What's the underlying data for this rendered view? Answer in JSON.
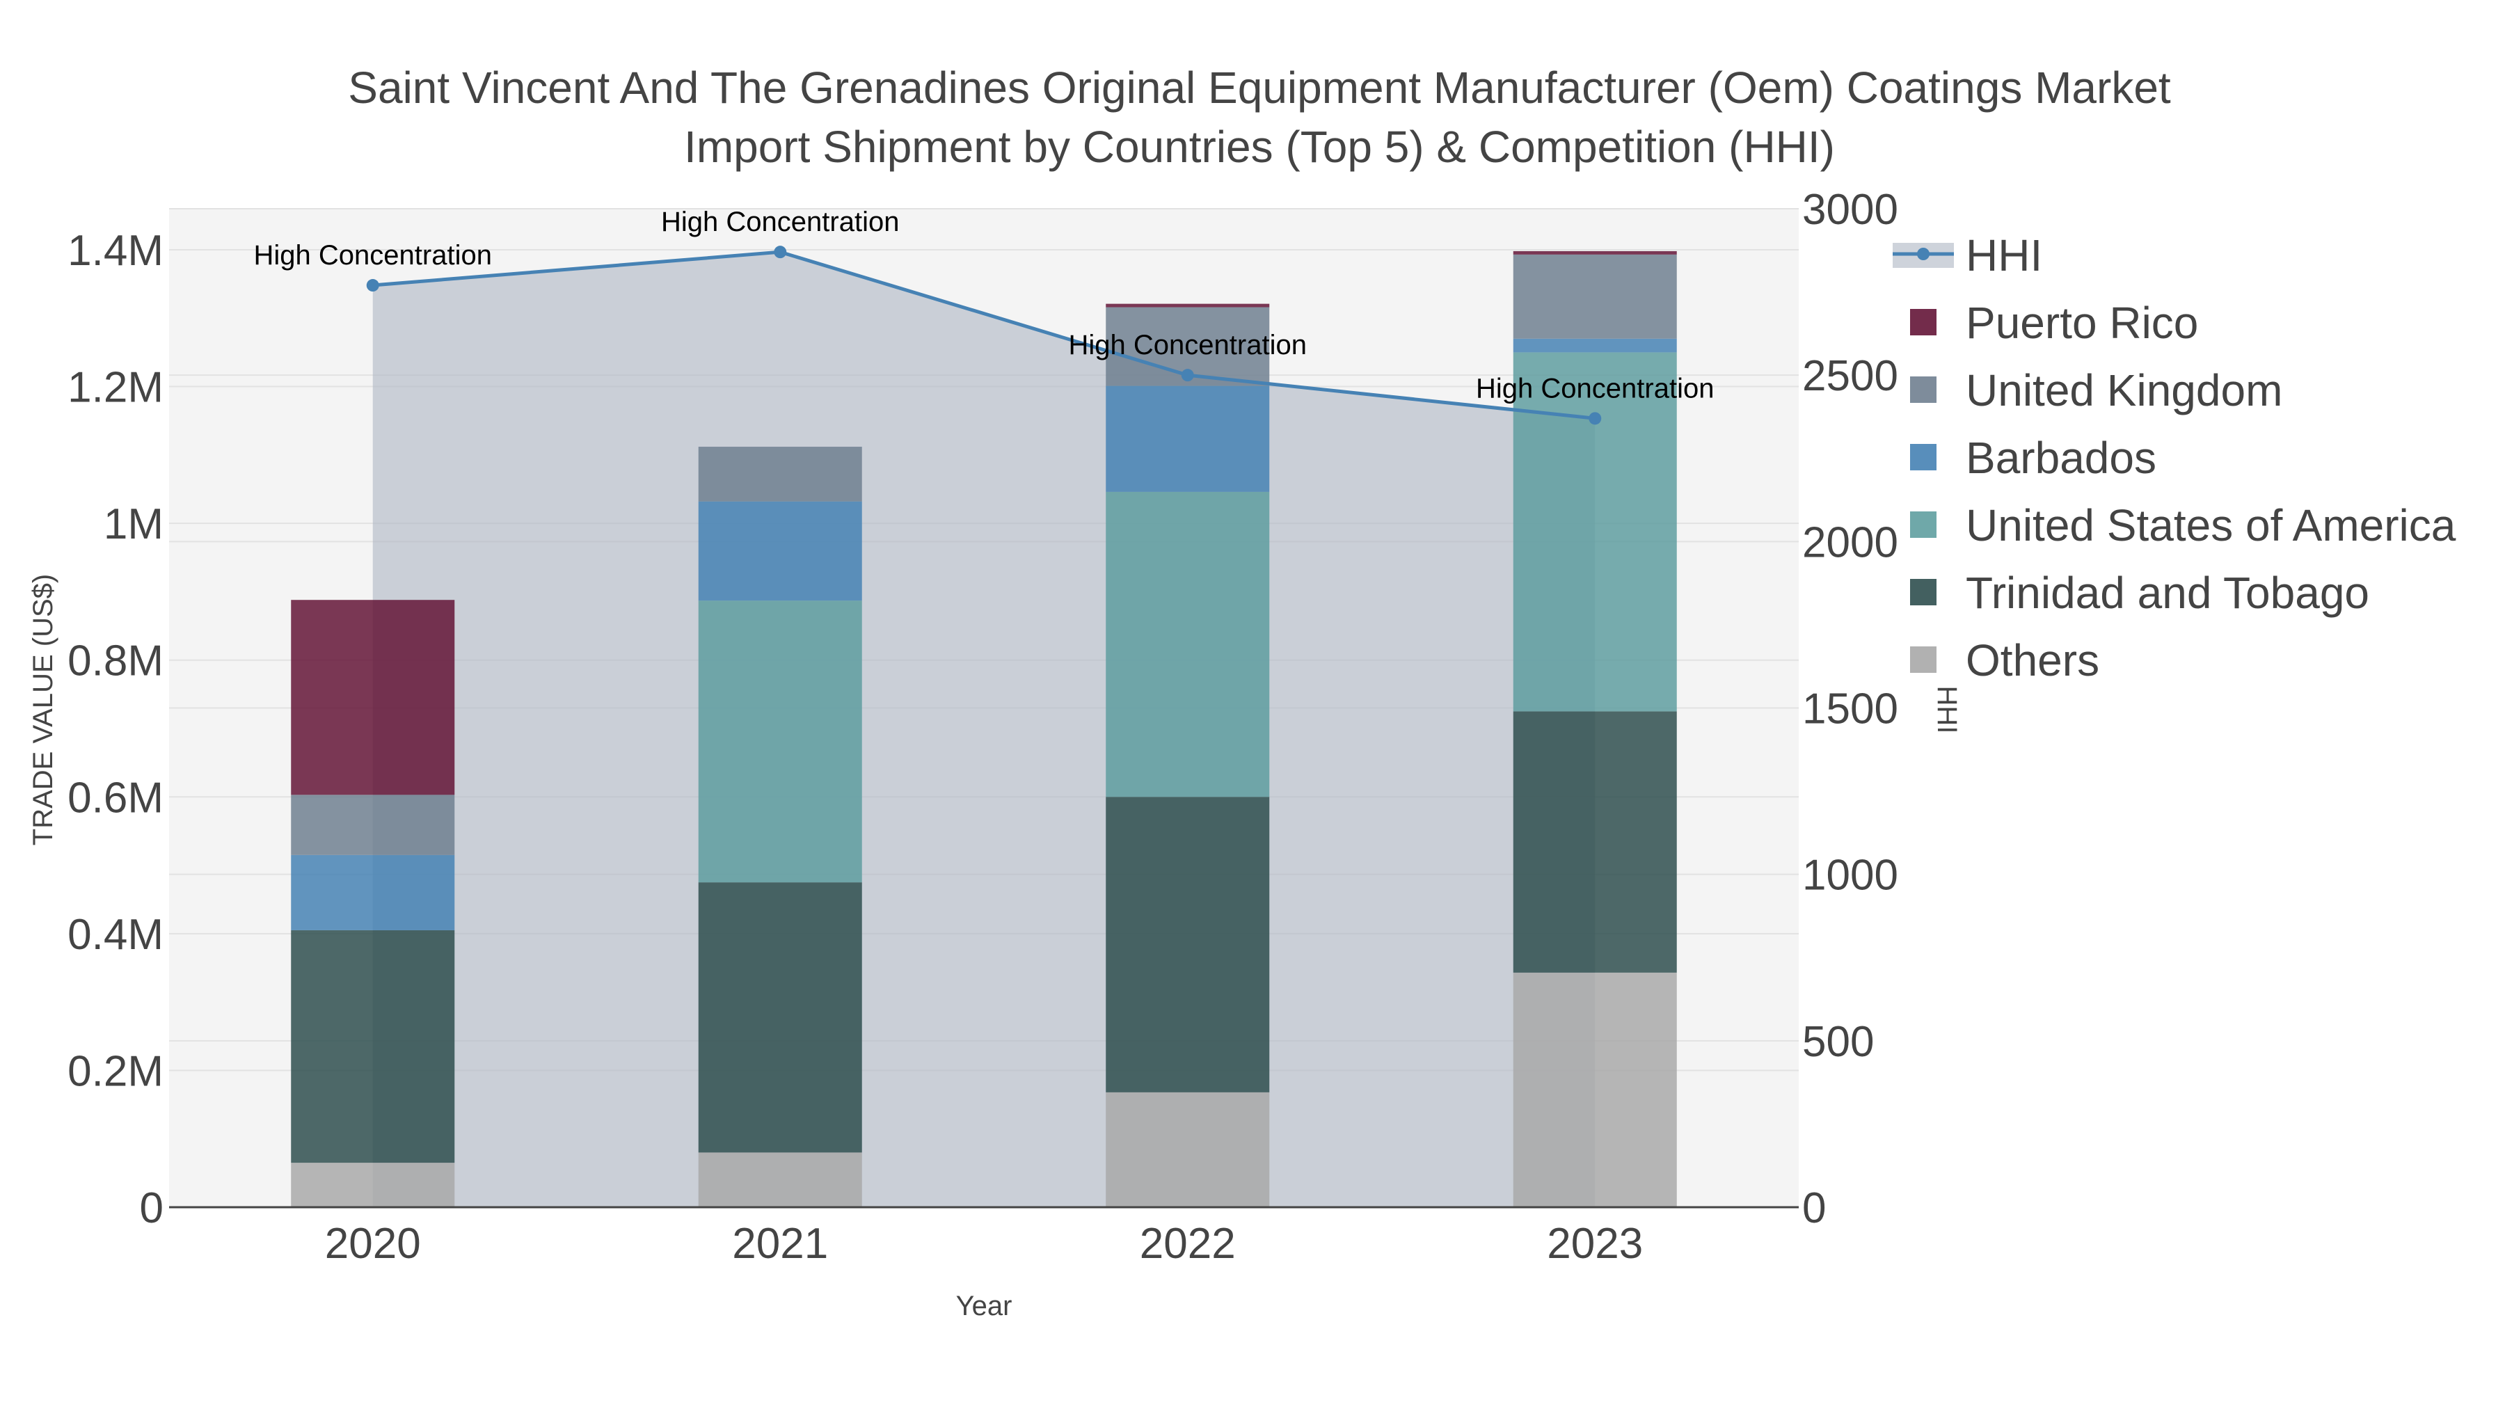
{
  "title_line1": "Saint Vincent And The Grenadines Original Equipment Manufacturer (Oem) Coatings Market",
  "title_line2": "Import Shipment by Countries (Top 5) & Competition (HHI)",
  "chart_data": {
    "type": "bar",
    "stacked": true,
    "categories": [
      "2020",
      "2021",
      "2022",
      "2023"
    ],
    "xlabel": "Year",
    "ylabel": "TRADE VALUE (US$)",
    "y2label": "HHI",
    "ylim": [
      0,
      1460000
    ],
    "y2lim": [
      0,
      3000
    ],
    "yticks": [
      "0",
      "0.2M",
      "0.4M",
      "0.6M",
      "0.8M",
      "1M",
      "1.2M",
      "1.4M"
    ],
    "y2ticks": [
      "0",
      "500",
      "1000",
      "1500",
      "2000",
      "2500",
      "3000"
    ],
    "series": [
      {
        "name": "Others",
        "color": "#a9a9a9",
        "values": [
          65000,
          80000,
          168000,
          343000
        ]
      },
      {
        "name": "Trinidad and Tobago",
        "color": "#2f4f4f",
        "values": [
          340000,
          395000,
          432000,
          382000
        ]
      },
      {
        "name": "United States of America",
        "color": "#5f9ea0",
        "values": [
          0,
          412000,
          446000,
          525000
        ]
      },
      {
        "name": "Barbados",
        "color": "#4682b4",
        "values": [
          110000,
          145000,
          155000,
          20000
        ]
      },
      {
        "name": "United Kingdom",
        "color": "#708090",
        "values": [
          88000,
          80000,
          115000,
          123000
        ]
      },
      {
        "name": "Puerto Rico",
        "color": "#641537",
        "values": [
          285000,
          0,
          5000,
          5000
        ]
      }
    ],
    "hhi": {
      "name": "HHI",
      "color": "#4682b4",
      "values": [
        2770,
        2870,
        2500,
        2370
      ],
      "annotations": [
        "High Concentration",
        "High Concentration",
        "High Concentration",
        "High Concentration"
      ]
    },
    "legend": [
      "HHI",
      "Puerto Rico",
      "United Kingdom",
      "Barbados",
      "United States of America",
      "Trinidad and Tobago",
      "Others"
    ],
    "legend_position": "right"
  }
}
